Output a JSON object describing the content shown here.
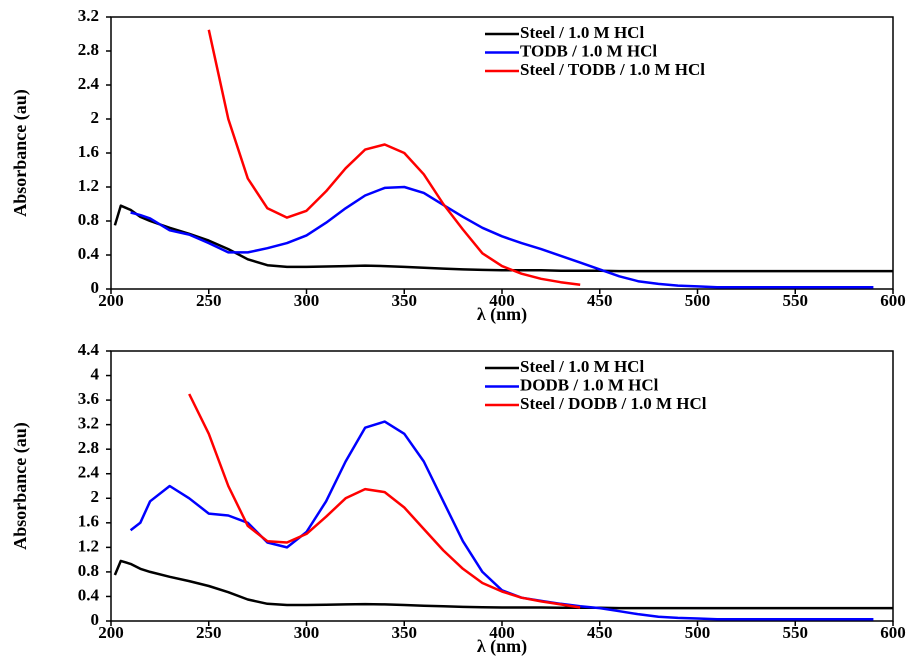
{
  "chart_data": [
    {
      "type": "line",
      "xlabel": "λ (nm)",
      "ylabel": "Absorbance (au)",
      "legend": "upper right",
      "x": [
        202,
        205,
        210,
        215,
        220,
        230,
        240,
        250,
        260,
        270,
        280,
        290,
        300,
        310,
        320,
        330,
        340,
        350,
        360,
        370,
        380,
        390,
        400,
        410,
        420,
        430,
        440,
        450,
        460,
        470,
        480,
        490,
        500,
        510,
        520,
        530,
        540,
        550,
        560,
        570,
        580,
        590,
        600
      ],
      "xlim": [
        200,
        600
      ],
      "xticks": [
        200,
        250,
        300,
        350,
        400,
        450,
        500,
        550,
        600
      ],
      "ylim": [
        0,
        3.2
      ],
      "yticks": [
        0,
        0.4,
        0.8,
        1.2,
        1.6,
        2,
        2.4,
        2.8,
        3.2
      ],
      "series": [
        {
          "name": "Steel / 1.0 M HCl",
          "color": "#000000",
          "values": [
            0.75,
            0.98,
            0.93,
            0.85,
            0.8,
            0.72,
            0.65,
            0.57,
            0.47,
            0.35,
            0.28,
            0.26,
            0.26,
            0.265,
            0.27,
            0.275,
            0.27,
            0.26,
            0.25,
            0.24,
            0.23,
            0.225,
            0.22,
            0.22,
            0.22,
            0.215,
            0.215,
            0.215,
            0.21,
            0.21,
            0.21,
            0.21,
            0.21,
            0.21,
            0.21,
            0.21,
            0.21,
            0.21,
            0.21,
            0.21,
            0.21,
            0.21,
            0.21
          ]
        },
        {
          "name": "TODB / 1.0 M HCl",
          "color": "#0000ff",
          "values": [
            null,
            null,
            0.9,
            0.87,
            0.83,
            0.69,
            0.64,
            0.54,
            0.43,
            0.43,
            0.48,
            0.54,
            0.63,
            0.78,
            0.95,
            1.1,
            1.19,
            1.2,
            1.13,
            0.99,
            0.85,
            0.72,
            0.62,
            0.54,
            0.47,
            0.39,
            0.31,
            0.23,
            0.15,
            0.09,
            0.06,
            0.04,
            0.03,
            0.02,
            0.02,
            0.02,
            0.02,
            0.02,
            0.02,
            0.02,
            0.02,
            0.02,
            null
          ]
        },
        {
          "name": "Steel / TODB / 1.0 M HCl",
          "color": "#ff0000",
          "values": [
            null,
            null,
            null,
            null,
            null,
            null,
            null,
            3.05,
            2.0,
            1.3,
            0.95,
            0.84,
            0.92,
            1.15,
            1.42,
            1.64,
            1.7,
            1.6,
            1.35,
            1.0,
            0.7,
            0.42,
            0.27,
            0.18,
            0.12,
            0.08,
            0.05,
            null,
            null,
            null,
            null,
            null,
            null,
            null,
            null,
            null,
            null,
            null,
            null,
            null,
            null,
            null,
            null
          ]
        }
      ]
    },
    {
      "type": "line",
      "xlabel": "λ (nm)",
      "ylabel": "Absorbance (au)",
      "legend": "upper right",
      "x": [
        202,
        205,
        210,
        215,
        220,
        230,
        240,
        250,
        260,
        270,
        280,
        290,
        300,
        310,
        320,
        330,
        340,
        350,
        360,
        370,
        380,
        390,
        400,
        410,
        420,
        430,
        440,
        450,
        460,
        470,
        480,
        490,
        500,
        510,
        520,
        530,
        540,
        550,
        560,
        570,
        580,
        590,
        600
      ],
      "xlim": [
        200,
        600
      ],
      "xticks": [
        200,
        250,
        300,
        350,
        400,
        450,
        500,
        550,
        600
      ],
      "ylim": [
        0,
        4.4
      ],
      "yticks": [
        0,
        0.4,
        0.8,
        1.2,
        1.6,
        2,
        2.4,
        2.8,
        3.2,
        3.6,
        4,
        4.4
      ],
      "series": [
        {
          "name": "Steel / 1.0 M HCl",
          "color": "#000000",
          "values": [
            0.75,
            0.98,
            0.93,
            0.85,
            0.8,
            0.72,
            0.65,
            0.57,
            0.47,
            0.35,
            0.28,
            0.26,
            0.26,
            0.265,
            0.27,
            0.275,
            0.27,
            0.26,
            0.25,
            0.24,
            0.23,
            0.225,
            0.22,
            0.22,
            0.22,
            0.215,
            0.215,
            0.215,
            0.21,
            0.21,
            0.21,
            0.21,
            0.21,
            0.21,
            0.21,
            0.21,
            0.21,
            0.21,
            0.21,
            0.21,
            0.21,
            0.21,
            0.21
          ]
        },
        {
          "name": "DODB / 1.0 M HCl",
          "color": "#0000ff",
          "values": [
            null,
            null,
            1.48,
            1.6,
            1.95,
            2.2,
            2.0,
            1.75,
            1.72,
            1.6,
            1.28,
            1.2,
            1.45,
            1.95,
            2.6,
            3.15,
            3.25,
            3.05,
            2.6,
            1.95,
            1.3,
            0.8,
            0.5,
            0.38,
            0.33,
            0.28,
            0.24,
            0.21,
            0.16,
            0.11,
            0.07,
            0.05,
            0.04,
            0.03,
            0.03,
            0.03,
            0.03,
            0.03,
            0.03,
            0.03,
            0.03,
            0.03,
            null
          ]
        },
        {
          "name": "Steel / DODB / 1.0 M HCl",
          "color": "#ff0000",
          "values": [
            null,
            null,
            null,
            null,
            null,
            null,
            3.7,
            3.05,
            2.2,
            1.55,
            1.3,
            1.28,
            1.42,
            1.7,
            2.0,
            2.15,
            2.1,
            1.85,
            1.5,
            1.15,
            0.85,
            0.62,
            0.48,
            0.38,
            0.32,
            0.27,
            0.22,
            null,
            null,
            null,
            null,
            null,
            null,
            null,
            null,
            null,
            null,
            null,
            null,
            null,
            null,
            null,
            null
          ]
        }
      ]
    }
  ]
}
